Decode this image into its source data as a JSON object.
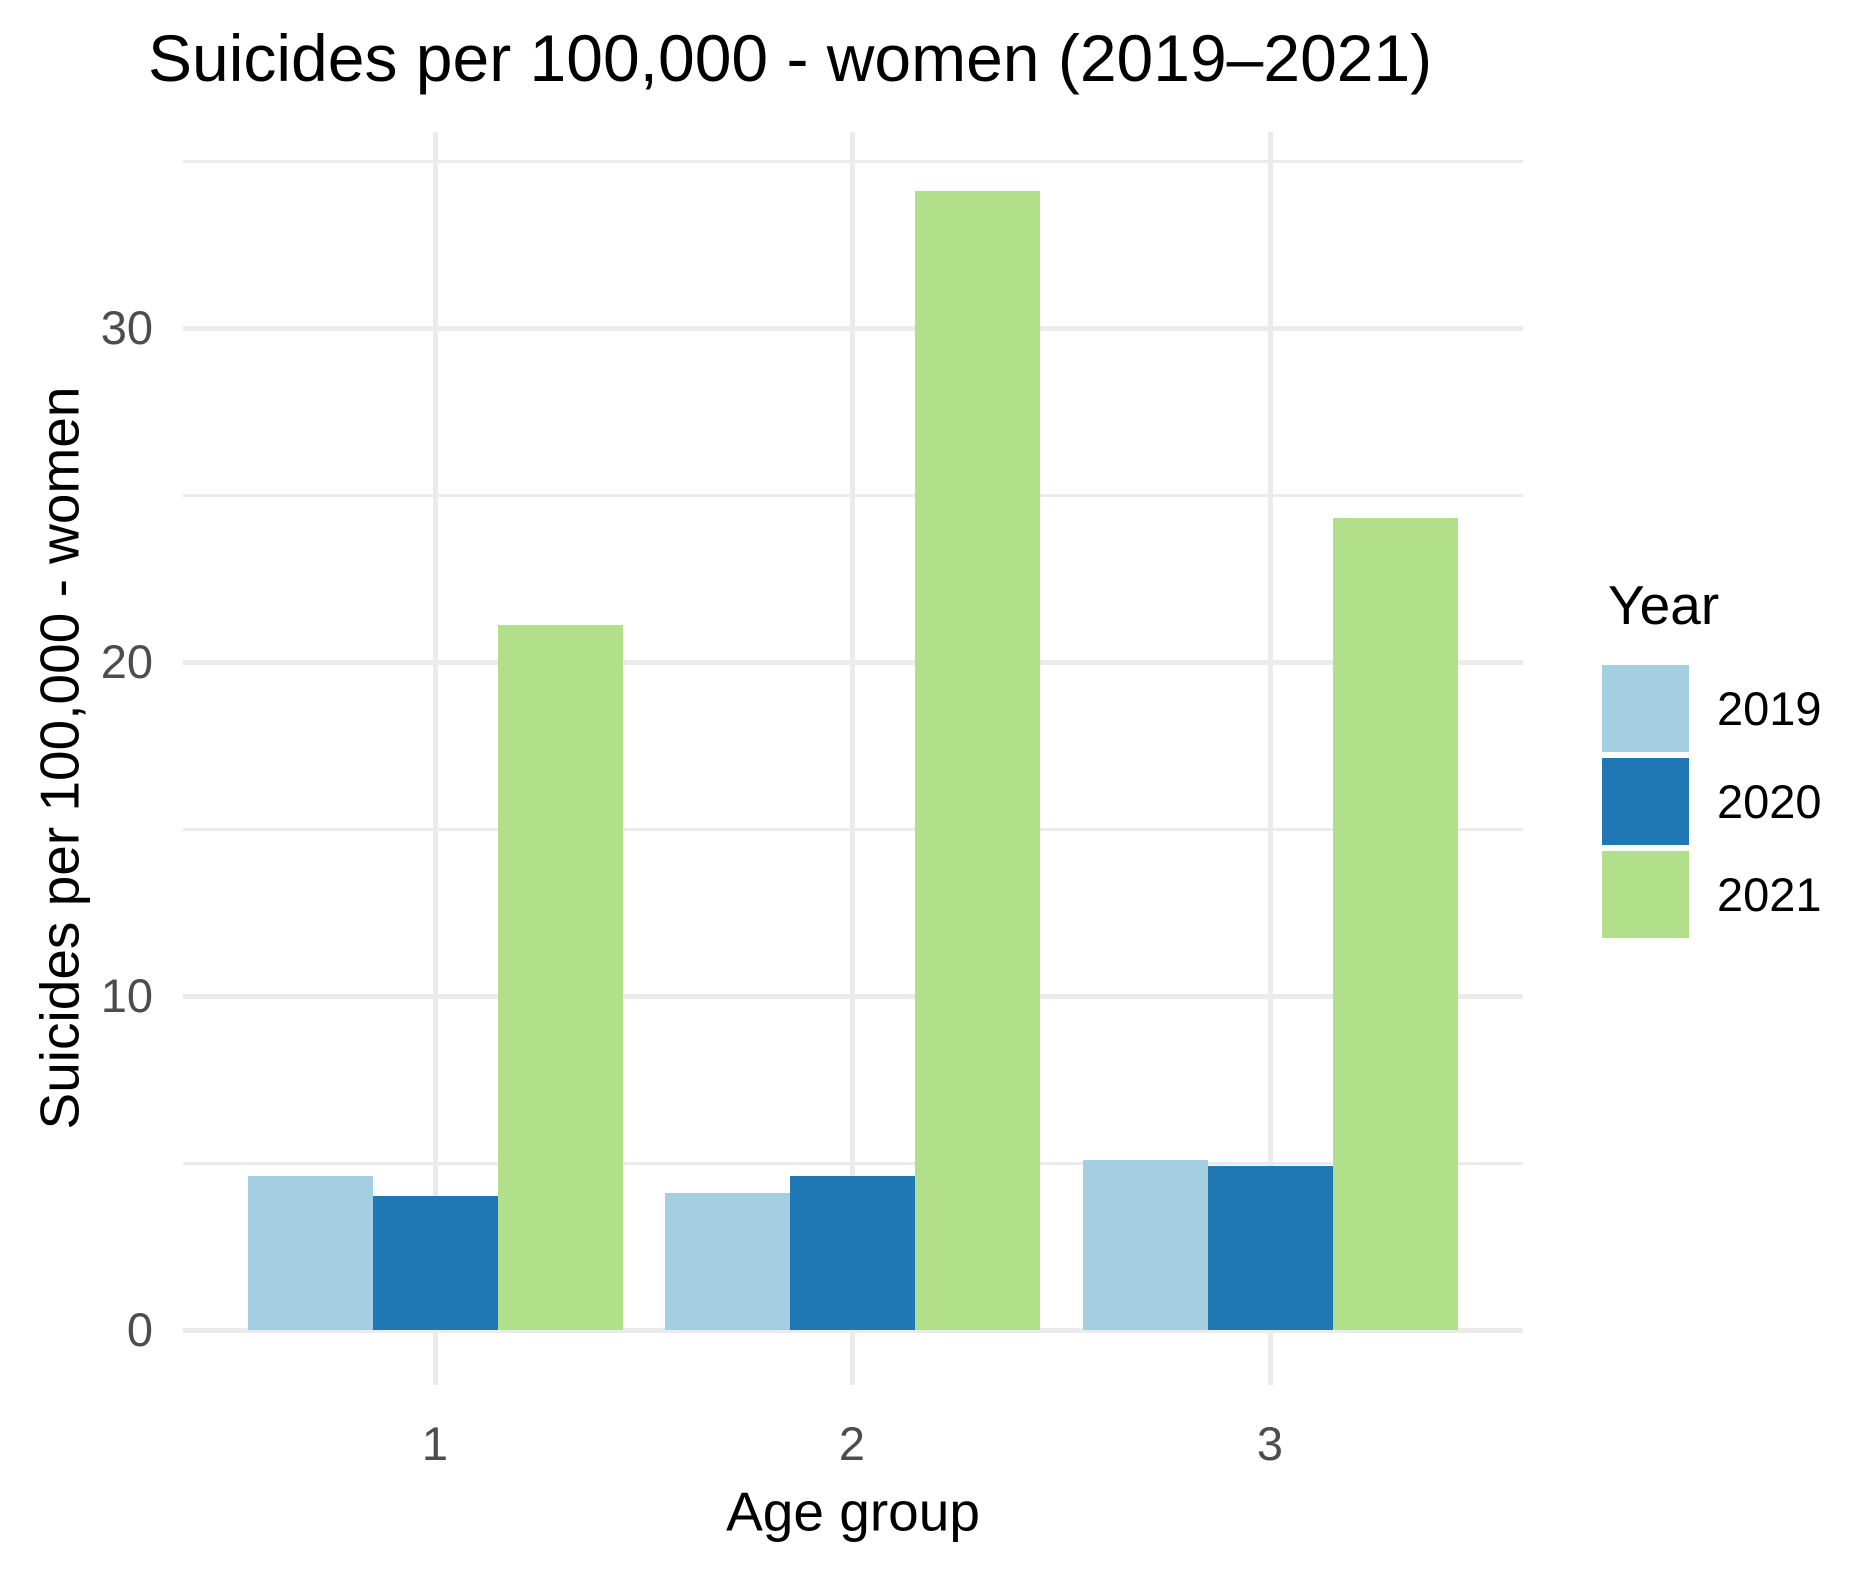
{
  "chart": {
    "title": "Suicides per 100,000 - women (2019–2021)",
    "xlabel": "Age group",
    "ylabel": "Suicides per 100,000 - women",
    "legend_title": "Year"
  },
  "chart_data": {
    "type": "bar",
    "title": "Suicides per 100,000 - women (2019–2021)",
    "xlabel": "Age group",
    "ylabel": "Suicides per 100,000 - women",
    "categories": [
      "1",
      "2",
      "3"
    ],
    "series": [
      {
        "name": "2019",
        "color": "#A6CEE3",
        "values": [
          4.6,
          4.1,
          5.1
        ]
      },
      {
        "name": "2020",
        "color": "#1F78B4",
        "values": [
          4.0,
          4.6,
          4.9
        ]
      },
      {
        "name": "2021",
        "color": "#B2DF8A",
        "values": [
          21.1,
          34.1,
          24.3
        ]
      }
    ],
    "legend_title": "Year",
    "legend_position": "right",
    "legend_labels": [
      "2019",
      "2020",
      "2021"
    ],
    "ylim": [
      0,
      35.9
    ],
    "yticks_major": [
      0,
      10,
      20,
      30
    ],
    "yticks_minor": [
      5,
      15,
      25,
      35
    ],
    "grid": true,
    "colors": {
      "grid": "#EBEBEB",
      "tick_labels": "#4D4D4D",
      "text": "#000000",
      "background": "#FFFFFF"
    }
  }
}
